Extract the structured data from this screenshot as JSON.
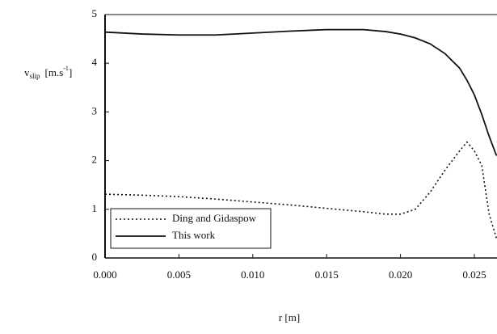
{
  "chart_data": {
    "type": "line",
    "xlabel": "r  [m]",
    "ylabel": {
      "symbol": "v",
      "subscript": "slip",
      "unit": "[m.s",
      "unit_exponent": "-1",
      "unit_close": "]"
    },
    "x": [
      0,
      0.0025,
      0.005,
      0.0075,
      0.01,
      0.0125,
      0.015,
      0.0175,
      0.019,
      0.02,
      0.021,
      0.022,
      0.023,
      0.024,
      0.0245,
      0.025,
      0.0255,
      0.026,
      0.0265
    ],
    "series": [
      {
        "name": "Ding and Gidaspow",
        "color": "#111111",
        "dashed": true,
        "values": [
          1.31,
          1.29,
          1.26,
          1.21,
          1.15,
          1.09,
          1.02,
          0.95,
          0.9,
          0.9,
          1.0,
          1.35,
          1.8,
          2.2,
          2.38,
          2.2,
          1.9,
          0.9,
          0.4
        ]
      },
      {
        "name": "This work",
        "color": "#111111",
        "dashed": false,
        "values": [
          4.64,
          4.6,
          4.58,
          4.58,
          4.62,
          4.66,
          4.69,
          4.69,
          4.65,
          4.6,
          4.52,
          4.4,
          4.2,
          3.9,
          3.65,
          3.35,
          2.95,
          2.5,
          2.1
        ]
      }
    ],
    "xlim": [
      0,
      0.0265
    ],
    "ylim": [
      0,
      5
    ],
    "xticks": [
      {
        "value": 0,
        "label": "0.000"
      },
      {
        "value": 0.005,
        "label": "0.005"
      },
      {
        "value": 0.01,
        "label": "0.010"
      },
      {
        "value": 0.015,
        "label": "0.015"
      },
      {
        "value": 0.02,
        "label": "0.020"
      },
      {
        "value": 0.025,
        "label": "0.025"
      }
    ],
    "yticks": [
      0,
      1,
      2,
      3,
      4,
      5
    ],
    "legend": "lower-left"
  }
}
